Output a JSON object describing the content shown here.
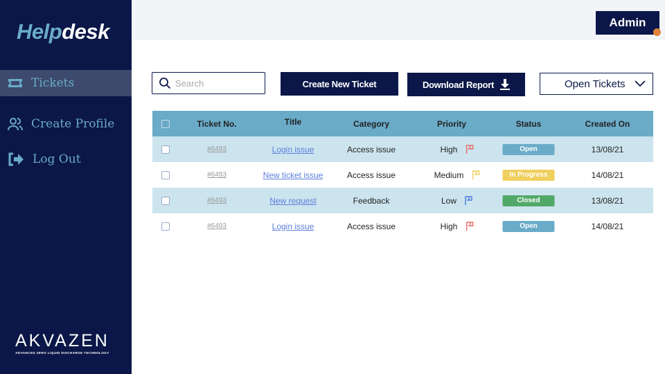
{
  "app": {
    "title_part1": "Help",
    "title_part2": "desk"
  },
  "sidebar": {
    "items": [
      {
        "label": "Tickets",
        "icon": "ticket-icon",
        "active": true
      },
      {
        "label": "Create Profile",
        "icon": "users-icon"
      },
      {
        "label": "Log Out",
        "icon": "logout-icon"
      }
    ]
  },
  "brand": {
    "name": "AKVAZEN",
    "tagline": "ADVANCED ZERO LIQUID DISCHARGE TECHNOLOGY"
  },
  "header": {
    "admin_label": "Admin",
    "notification_color": "#e0833a"
  },
  "toolbar": {
    "search_placeholder": "Search",
    "create_label": "Create New Ticket",
    "download_label": "Download Report",
    "filter_value": "Open Tickets"
  },
  "table": {
    "columns": [
      "Ticket No.",
      "Title",
      "Category",
      "Priority",
      "Status",
      "Created On"
    ],
    "rows": [
      {
        "ticket": "#6493",
        "title": "Login issue",
        "category": "Access issue",
        "priority": "High",
        "status": "Open",
        "created": "13/08/21"
      },
      {
        "ticket": "#6493",
        "title": "New ticket issue",
        "category": "Access issue",
        "priority": "Medium",
        "status": "In Progress",
        "created": "14/08/21"
      },
      {
        "ticket": "#6493",
        "title": "New request",
        "category": "Feedback",
        "priority": "Low",
        "status": "Closed",
        "created": "13/08/21"
      },
      {
        "ticket": "#6493",
        "title": "Login issue",
        "category": "Access issue",
        "priority": "High",
        "status": "Open",
        "created": "14/08/21"
      }
    ]
  },
  "colors": {
    "priority": {
      "High": "#e86f6f",
      "Medium": "#efcf5e",
      "Low": "#4f80e0"
    },
    "status": {
      "Open": "#6aabc8",
      "In Progress": "#efcf5e",
      "Closed": "#52a868"
    },
    "navy": "#0b1748",
    "accent": "#6aabc8"
  }
}
